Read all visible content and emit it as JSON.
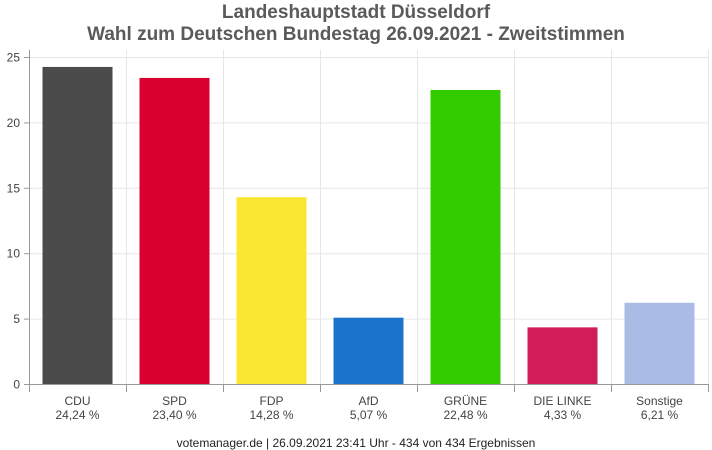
{
  "chart_data": {
    "type": "bar",
    "title": "Landeshauptstadt Düsseldorf",
    "subtitle": "Wahl zum Deutschen Bundestag 26.09.2021  - Zweitstimmen",
    "categories": [
      "CDU",
      "SPD",
      "FDP",
      "AfD",
      "GRÜNE",
      "DIE LINKE",
      "Sonstige"
    ],
    "values": [
      24.24,
      23.4,
      14.28,
      5.07,
      22.48,
      4.33,
      6.21
    ],
    "value_labels": [
      "24,24 %",
      "23,40 %",
      "14,28 %",
      "5,07 %",
      "22,48 %",
      "4,33 %",
      "6,21 %"
    ],
    "colors": [
      "#4b4b4b",
      "#d9002f",
      "#f9e733",
      "#1b73cc",
      "#33cc00",
      "#d11c5a",
      "#aabce6"
    ],
    "yticks": [
      0,
      5,
      10,
      15,
      20,
      25
    ],
    "ylim": [
      0,
      25
    ],
    "grid": true,
    "xlabel": "",
    "ylabel": ""
  },
  "footer": "votemanager.de | 26.09.2021 23:41 Uhr - 434 von 434 Ergebnissen"
}
